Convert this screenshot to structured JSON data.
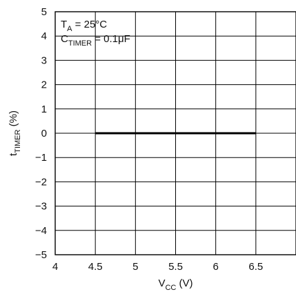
{
  "chart_data": {
    "type": "line",
    "title": "",
    "xlabel": {
      "main": "V",
      "sub": "CC",
      "suffix": " (V)"
    },
    "ylabel": {
      "main": "t",
      "sub": "TIMER",
      "suffix": " (%)"
    },
    "xlim": [
      4,
      7
    ],
    "ylim": [
      -5,
      5
    ],
    "x_ticks": [
      4,
      4.5,
      5,
      5.5,
      6,
      6.5
    ],
    "x_tick_labels": [
      "4",
      "4.5",
      "5",
      "5.5",
      "6",
      "6.5"
    ],
    "y_ticks": [
      5,
      4,
      3,
      2,
      1,
      0,
      -1,
      -2,
      -3,
      -4,
      -5
    ],
    "y_tick_labels": [
      "5",
      "4",
      "3",
      "2",
      "1",
      "0",
      "−1",
      "−2",
      "−3",
      "−4",
      "−5"
    ],
    "grid": true,
    "series": [
      {
        "x": [
          4.5,
          6.5
        ],
        "y": [
          0,
          0
        ]
      }
    ],
    "annotations": [
      {
        "main": "T",
        "sub": "A",
        "suffix": " = 25°C"
      },
      {
        "main": "C",
        "sub": "TIMER",
        "suffix": " = 0.1μF"
      }
    ]
  }
}
